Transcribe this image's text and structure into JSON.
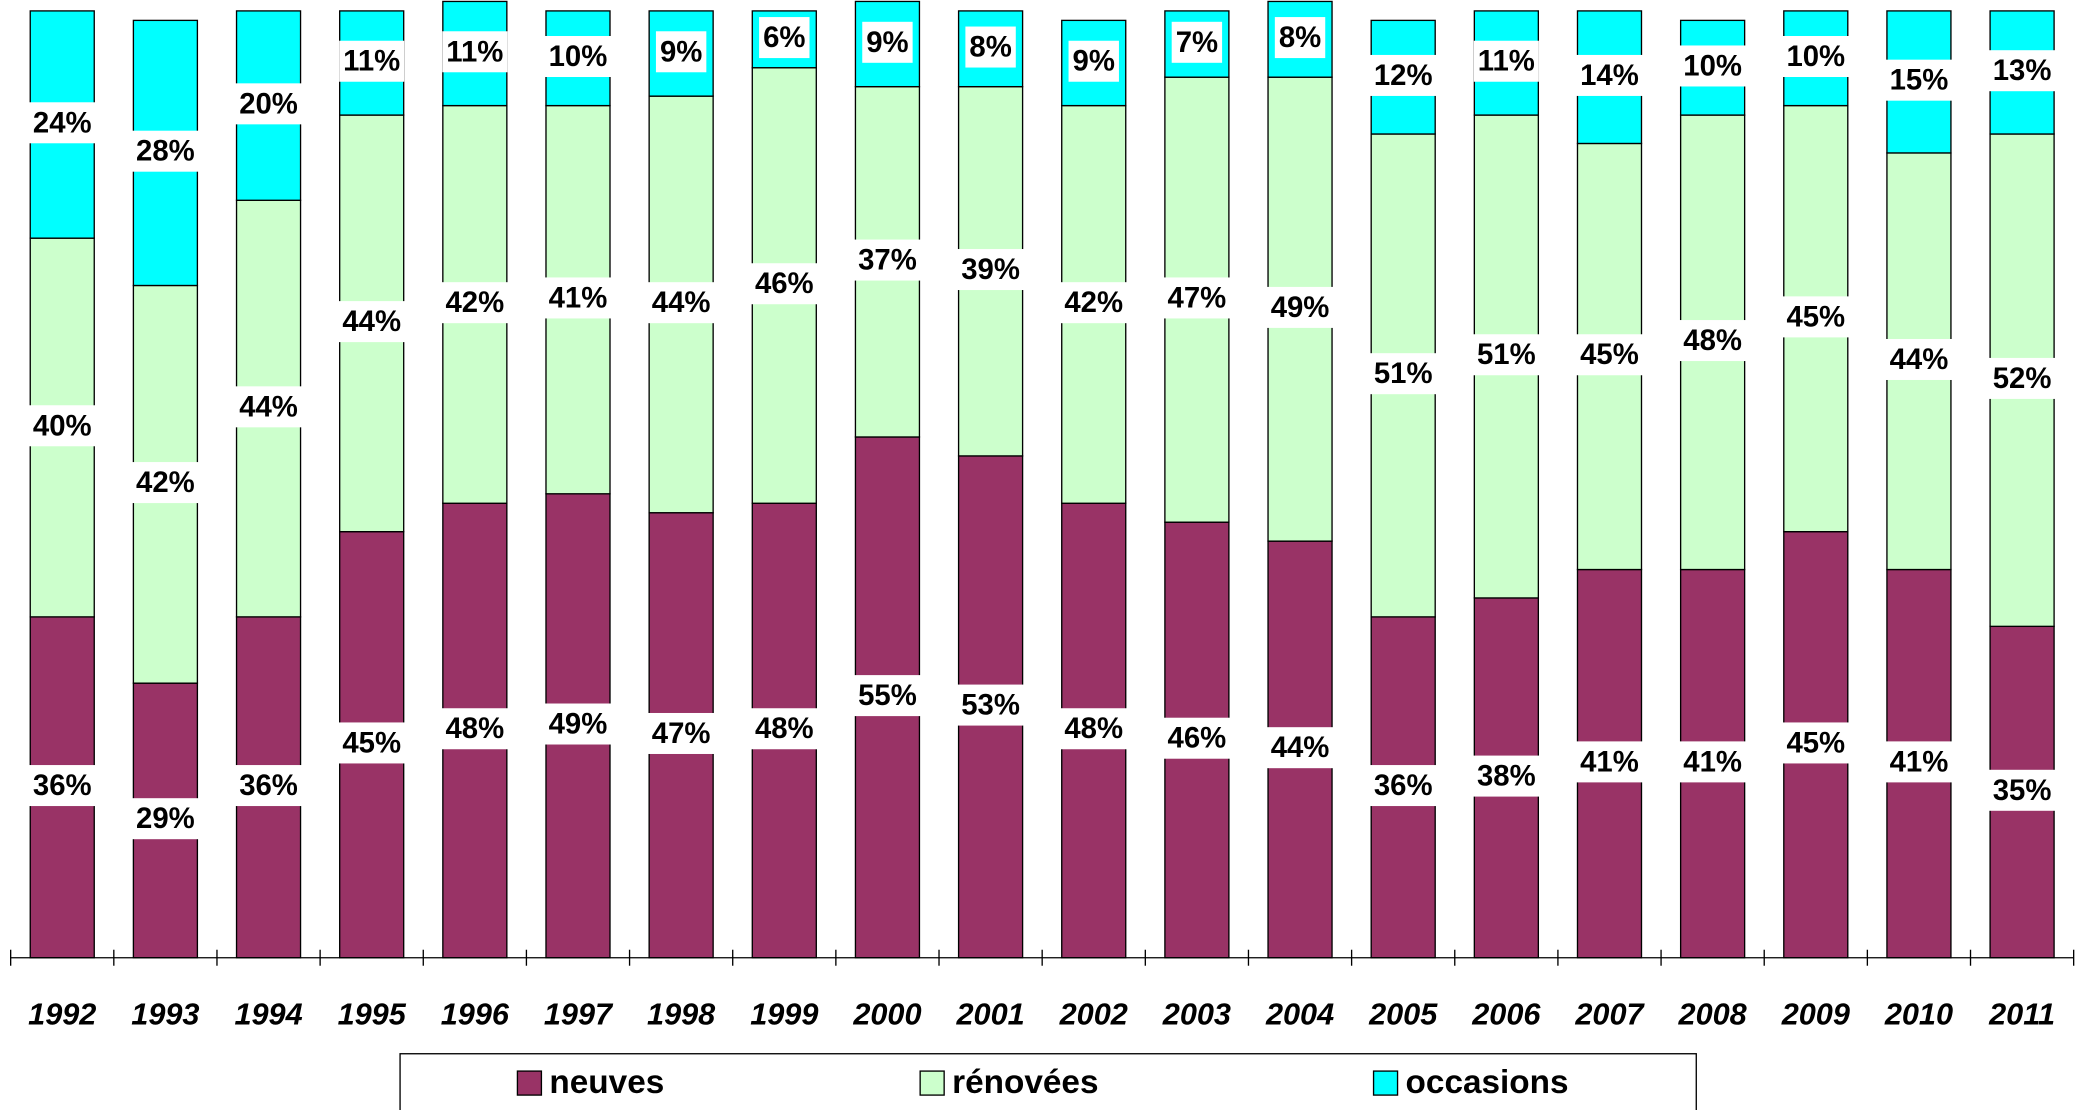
{
  "chart_data": {
    "type": "stacked_bar",
    "categories": [
      "1992",
      "1993",
      "1994",
      "1995",
      "1996",
      "1997",
      "1998",
      "1999",
      "2000",
      "2001",
      "2002",
      "2003",
      "2004",
      "2005",
      "2006",
      "2007",
      "2008",
      "2009",
      "2010",
      "2011"
    ],
    "ylim": [
      0,
      100
    ],
    "series": [
      {
        "name": "neuves",
        "color": "#993366",
        "values": [
          36,
          29,
          36,
          45,
          48,
          49,
          47,
          48,
          55,
          53,
          48,
          46,
          44,
          36,
          38,
          41,
          41,
          45,
          41,
          35
        ],
        "value_labels": [
          "36%",
          "29%",
          "36%",
          "45%",
          "48%",
          "49%",
          "47%",
          "48%",
          "55%",
          "53%",
          "48%",
          "46%",
          "44%",
          "36%",
          "38%",
          "41%",
          "41%",
          "45%",
          "41%",
          "35%"
        ]
      },
      {
        "name": "rénovées",
        "color": "#ccffcc",
        "values": [
          40,
          42,
          44,
          44,
          42,
          41,
          44,
          46,
          37,
          39,
          42,
          47,
          49,
          51,
          51,
          45,
          48,
          45,
          44,
          52
        ],
        "value_labels": [
          "40%",
          "42%",
          "44%",
          "44%",
          "42%",
          "41%",
          "44%",
          "46%",
          "37%",
          "39%",
          "42%",
          "47%",
          "49%",
          "51%",
          "51%",
          "45%",
          "48%",
          "45%",
          "44%",
          "52%"
        ]
      },
      {
        "name": "occasions",
        "color": "#00ffff",
        "values": [
          24,
          28,
          20,
          11,
          11,
          10,
          9,
          6,
          9,
          8,
          9,
          7,
          8,
          12,
          11,
          14,
          10,
          10,
          15,
          13
        ],
        "value_labels": [
          "24%",
          "28%",
          "20%",
          "11%",
          "11%",
          "10%",
          "9%",
          "6%",
          "9%",
          "8%",
          "9%",
          "7%",
          "8%",
          "12%",
          "11%",
          "14%",
          "10%",
          "10%",
          "15%",
          "13%"
        ]
      }
    ]
  }
}
